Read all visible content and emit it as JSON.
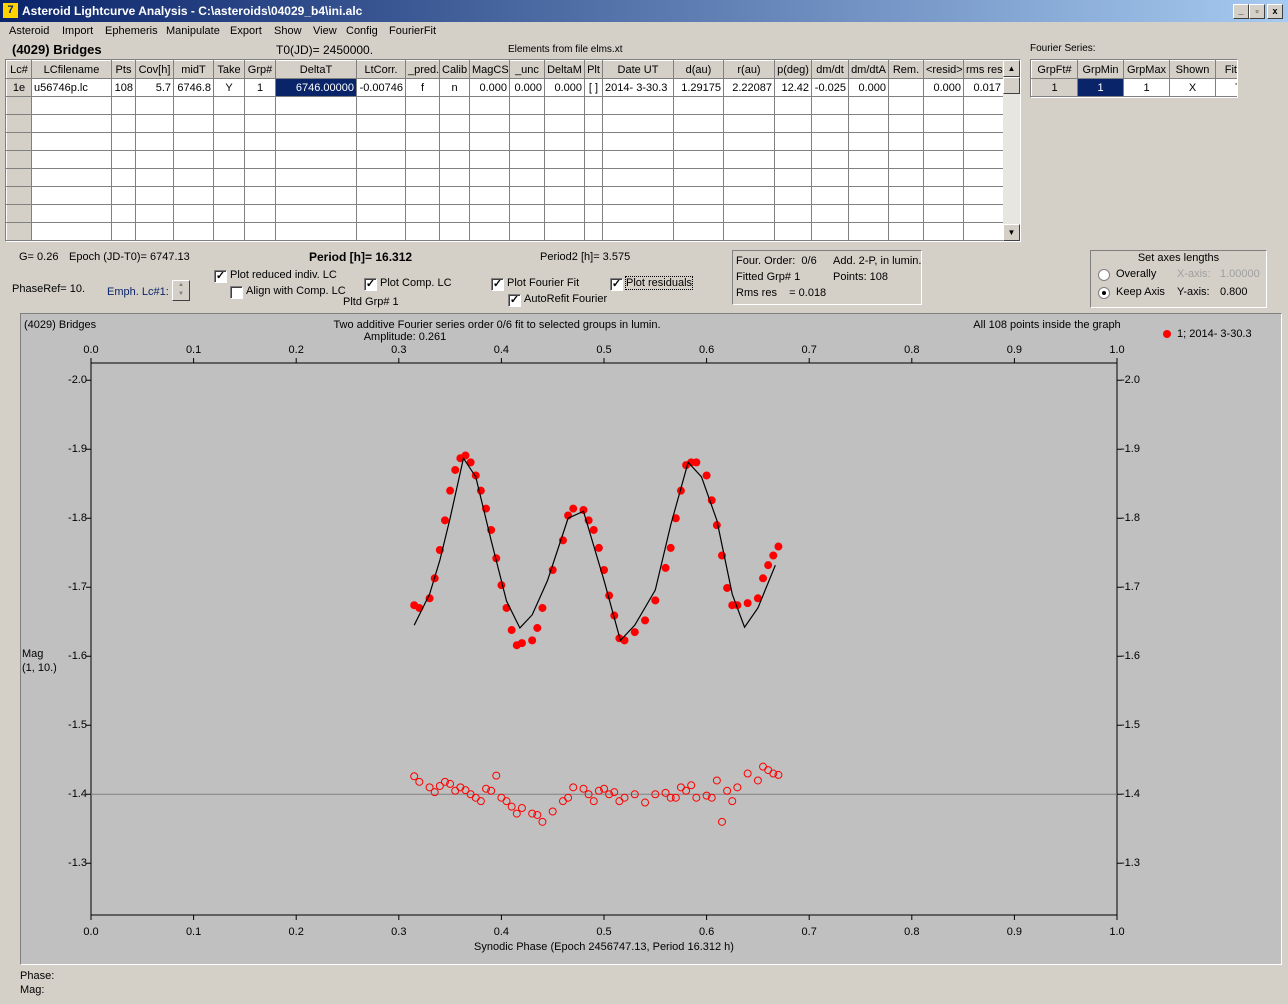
{
  "window": {
    "title": "Asteroid Lightcurve Analysis - C:\\asteroids\\04029_b4\\ini.alc"
  },
  "menu": [
    "Asteroid",
    "Import",
    "Ephemeris",
    "Manipulate",
    "Export",
    "Show",
    "View",
    "Config",
    "FourierFit"
  ],
  "header": {
    "object": "(4029) Bridges",
    "t0": "T0(JD)= 2450000.",
    "elements": "Elements from file elms.xt",
    "fourier_label": "Fourier Series:"
  },
  "lc_table": {
    "columns": [
      "Lc#",
      "LCfilename",
      "Pts",
      "Cov[h]",
      "midT",
      "Take",
      "Grp#",
      "DeltaT",
      "LtCorr.",
      "_pred.",
      "Calib",
      "MagCS",
      "_unc",
      "DeltaM",
      "Plt",
      "Date UT",
      "d(au)",
      "r(au)",
      "p(deg)",
      "dm/dt",
      "dm/dtA",
      "Rem.",
      "<resid>",
      "rms res"
    ],
    "rows": [
      [
        "1e",
        "u56746p.lc",
        "108",
        "5.7",
        "6746.8",
        "Y",
        "1",
        "6746.00000",
        "-0.00746",
        "f",
        "n",
        "0.000",
        "0.000",
        "0.000",
        "[ ]",
        "2014- 3-30.3",
        "1.29175",
        "2.22087",
        "12.42",
        "-0.025",
        "0.000",
        null,
        "0.000",
        "0.017"
      ]
    ]
  },
  "fourier_table": {
    "columns": [
      "GrpFt#",
      "GrpMin",
      "GrpMax",
      "Shown",
      "Fitted"
    ],
    "rows": [
      [
        "1",
        "1",
        "1",
        "X",
        "T"
      ]
    ]
  },
  "info": {
    "g": "G= 0.26",
    "epoch": "Epoch (JD-T0)= 6747.13",
    "period": "Period [h]= 16.312",
    "period2": "Period2 [h]= 3.575",
    "phase_ref": "PhaseRef= 10.",
    "emph": "Emph. Lc#1:",
    "pltd": "Pltd Grp# 1",
    "checkboxes": [
      {
        "label": "Plot reduced indiv. LC",
        "checked": true
      },
      {
        "label": "Align with Comp. LC",
        "checked": false
      },
      {
        "label": "Plot Comp. LC",
        "checked": true
      },
      {
        "label": "Plot Fourier Fit",
        "checked": true
      },
      {
        "label": "AutoRefit Fourier",
        "checked": true
      },
      {
        "label": "Plot residuals",
        "checked": true
      }
    ],
    "fit_box": [
      "Four. Order:  0/6",
      "Add. 2-P, in lumin.",
      "Fitted Grp# 1",
      "Points: 108",
      "Rms res    = 0.018"
    ]
  },
  "axes_box": {
    "title": "Set axes lengths",
    "options": [
      {
        "label": "Overally",
        "selected": false
      },
      {
        "label": "Keep Axis",
        "selected": true
      }
    ],
    "x_axis": {
      "label": "X-axis:",
      "value": "1.00000",
      "enabled": false
    },
    "y_axis": {
      "label": "Y-axis:",
      "value": "0.800",
      "enabled": true
    }
  },
  "chart_data": {
    "type": "scatter",
    "object": "(4029) Bridges",
    "title": "Two additive Fourier series order 0/6 fit to selected groups in lumin.",
    "subtitle": "Amplitude: 0.261",
    "note": "All 108 points inside the graph",
    "x_label": "Synodic Phase (Epoch 2456747.13, Period 16.312 h)",
    "y_label": [
      "Mag",
      "(1, 10.)"
    ],
    "xlim": [
      0,
      1
    ],
    "xticks": [
      {
        "value": 0,
        "label": "0.0"
      },
      0.1,
      0.2,
      0.3,
      0.4,
      0.5,
      0.6,
      0.7,
      0.8,
      0.9,
      {
        "value": 1,
        "label": "1.0"
      }
    ],
    "ylim": [
      -2.025,
      -1.225
    ],
    "y_inverted": true,
    "yticks": [
      {
        "value": -2,
        "label": "-2.0"
      },
      -1.9,
      -1.8,
      -1.7,
      -1.6,
      -1.5,
      -1.4,
      -1.3
    ],
    "residual_baseline": {
      "value": -1.4,
      "color": "#808080"
    },
    "series": [
      {
        "name": "1; 2014- 3-30.3",
        "color": "#ff0000",
        "style": "filled",
        "x": [
          0.315,
          0.32,
          0.33,
          0.335,
          0.34,
          0.345,
          0.35,
          0.355,
          0.36,
          0.365,
          0.37,
          0.375,
          0.38,
          0.385,
          0.39,
          0.395,
          0.4,
          0.405,
          0.41,
          0.415,
          0.42,
          0.43,
          0.435,
          0.44,
          0.45,
          0.46,
          0.465,
          0.47,
          0.48,
          0.485,
          0.49,
          0.495,
          0.5,
          0.505,
          0.51,
          0.515,
          0.52,
          0.53,
          0.54,
          0.55,
          0.56,
          0.565,
          0.57,
          0.575,
          0.58,
          0.585,
          0.59,
          0.6,
          0.605,
          0.61,
          0.615,
          0.62,
          0.625,
          0.63,
          0.64,
          0.65,
          0.655,
          0.66,
          0.665,
          0.67
        ],
        "values": [
          -1.674,
          -1.67,
          -1.684,
          -1.713,
          -1.754,
          -1.797,
          -1.84,
          -1.87,
          -1.887,
          -1.891,
          -1.881,
          -1.862,
          -1.84,
          -1.814,
          -1.783,
          -1.742,
          -1.703,
          -1.67,
          -1.638,
          -1.616,
          -1.619,
          -1.623,
          -1.641,
          -1.67,
          -1.725,
          -1.768,
          -1.804,
          -1.814,
          -1.812,
          -1.797,
          -1.783,
          -1.757,
          -1.725,
          -1.688,
          -1.659,
          -1.626,
          -1.623,
          -1.635,
          -1.652,
          -1.681,
          -1.728,
          -1.757,
          -1.8,
          -1.84,
          -1.877,
          -1.881,
          -1.881,
          -1.862,
          -1.826,
          -1.79,
          -1.746,
          -1.699,
          -1.674,
          -1.674,
          -1.677,
          -1.684,
          -1.713,
          -1.732,
          -1.746,
          -1.759
        ]
      },
      {
        "color": "#ff0000",
        "style": "open",
        "x": [
          0.315,
          0.32,
          0.33,
          0.335,
          0.34,
          0.345,
          0.35,
          0.355,
          0.36,
          0.365,
          0.37,
          0.375,
          0.38,
          0.385,
          0.39,
          0.395,
          0.4,
          0.405,
          0.41,
          0.415,
          0.42,
          0.43,
          0.435,
          0.44,
          0.45,
          0.46,
          0.465,
          0.47,
          0.48,
          0.485,
          0.49,
          0.495,
          0.5,
          0.505,
          0.51,
          0.515,
          0.52,
          0.53,
          0.54,
          0.55,
          0.56,
          0.565,
          0.57,
          0.575,
          0.58,
          0.585,
          0.59,
          0.6,
          0.605,
          0.61,
          0.615,
          0.62,
          0.625,
          0.63,
          0.64,
          0.65,
          0.655,
          0.66,
          0.665,
          0.67
        ],
        "values": [
          -1.426,
          -1.418,
          -1.41,
          -1.403,
          -1.412,
          -1.418,
          -1.415,
          -1.405,
          -1.41,
          -1.406,
          -1.4,
          -1.395,
          -1.39,
          -1.408,
          -1.405,
          -1.427,
          -1.395,
          -1.39,
          -1.382,
          -1.372,
          -1.38,
          -1.372,
          -1.37,
          -1.36,
          -1.375,
          -1.39,
          -1.395,
          -1.41,
          -1.408,
          -1.4,
          -1.39,
          -1.405,
          -1.408,
          -1.4,
          -1.403,
          -1.39,
          -1.395,
          -1.4,
          -1.388,
          -1.4,
          -1.402,
          -1.395,
          -1.395,
          -1.41,
          -1.405,
          -1.413,
          -1.395,
          -1.398,
          -1.395,
          -1.42,
          -1.36,
          -1.405,
          -1.39,
          -1.41,
          -1.43,
          -1.42,
          -1.44,
          -1.435,
          -1.43,
          -1.428
        ]
      },
      {
        "color": "#000000",
        "style": "line",
        "x": [
          0.315,
          0.33,
          0.34,
          0.35,
          0.363,
          0.375,
          0.39,
          0.405,
          0.418,
          0.43,
          0.445,
          0.465,
          0.48,
          0.5,
          0.516,
          0.53,
          0.55,
          0.565,
          0.582,
          0.595,
          0.61,
          0.625,
          0.637,
          0.65,
          0.667
        ],
        "values": [
          -1.645,
          -1.69,
          -1.739,
          -1.8,
          -1.887,
          -1.86,
          -1.768,
          -1.68,
          -1.641,
          -1.66,
          -1.71,
          -1.8,
          -1.81,
          -1.71,
          -1.623,
          -1.645,
          -1.696,
          -1.79,
          -1.881,
          -1.86,
          -1.797,
          -1.69,
          -1.642,
          -1.67,
          -1.732
        ]
      }
    ]
  }
}
